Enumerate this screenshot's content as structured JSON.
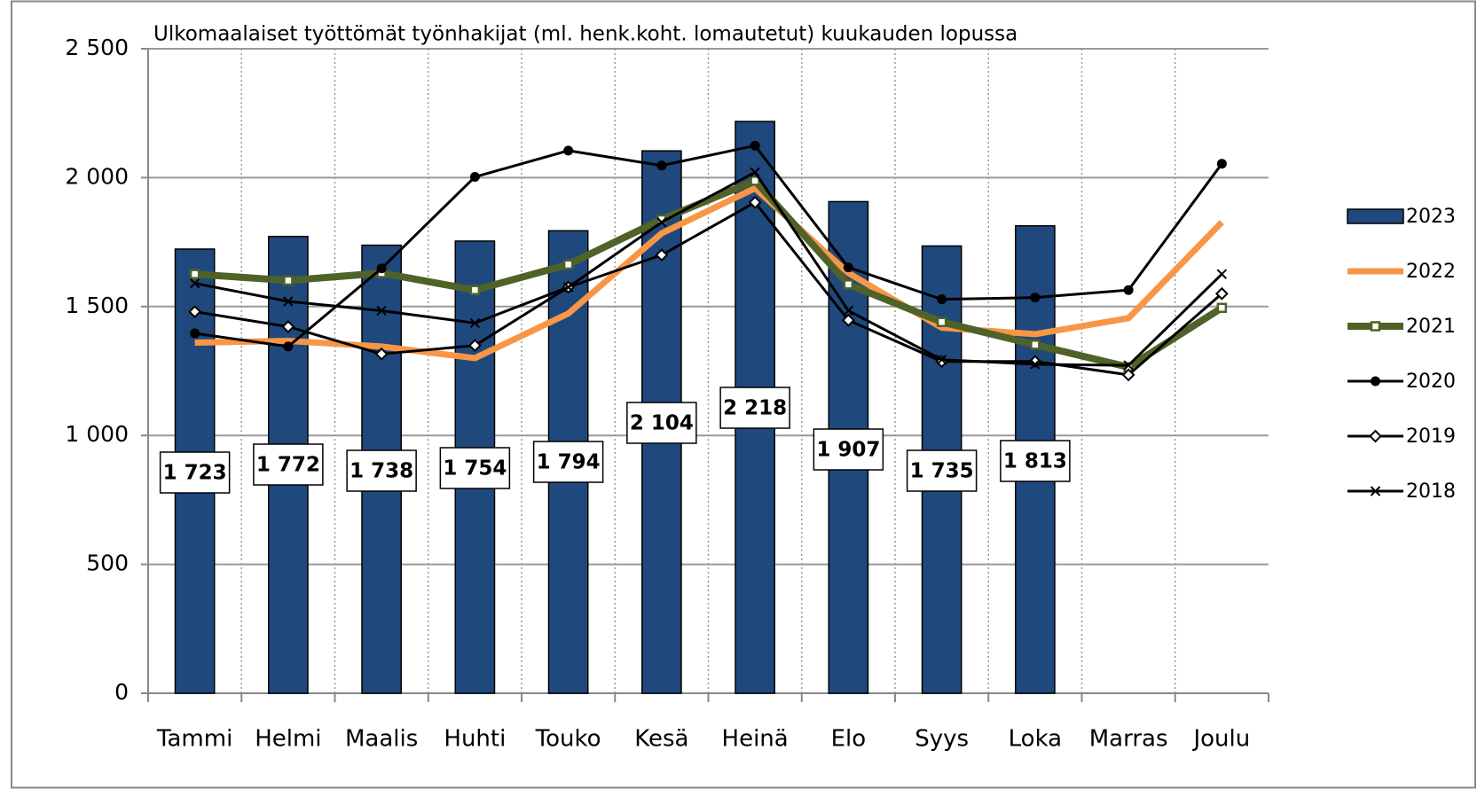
{
  "chart_data": {
    "type": "bar",
    "title": "Ulkomaalaiset työttömät työnhakijat (ml. henk.koht. lomautetut) kuukauden lopussa",
    "categories": [
      "Tammi",
      "Helmi",
      "Maalis",
      "Huhti",
      "Touko",
      "Kesä",
      "Heinä",
      "Elo",
      "Syys",
      "Loka",
      "Marras",
      "Joulu"
    ],
    "series": [
      {
        "name": "2023",
        "type": "bar",
        "color": "#1f497d",
        "values": [
          1723,
          1772,
          1738,
          1754,
          1794,
          2104,
          2218,
          1907,
          1735,
          1813,
          null,
          null
        ],
        "value_labels": [
          "1 723",
          "1 772",
          "1 738",
          "1 754",
          "1 794",
          "2 104",
          "2 218",
          "1 907",
          "1 735",
          "1 813",
          null,
          null
        ]
      },
      {
        "name": "2022",
        "type": "line",
        "color": "#f79646",
        "marker": "none",
        "values": [
          1360,
          1367,
          1345,
          1300,
          1473,
          1784,
          1959,
          1630,
          1418,
          1393,
          1455,
          1827
        ]
      },
      {
        "name": "2021",
        "type": "line",
        "color": "#4f6228",
        "marker": "square",
        "values": [
          1626,
          1601,
          1630,
          1564,
          1663,
          1838,
          1988,
          1586,
          1440,
          1352,
          1265,
          1495
        ]
      },
      {
        "name": "2020",
        "type": "line",
        "color": "#000000",
        "marker": "circle",
        "values": [
          1396,
          1345,
          1648,
          2003,
          2105,
          2047,
          2124,
          1652,
          1528,
          1535,
          1564,
          2054
        ]
      },
      {
        "name": "2019",
        "type": "line",
        "color": "#000000",
        "marker": "diamond",
        "values": [
          1480,
          1422,
          1316,
          1349,
          1575,
          1700,
          1904,
          1447,
          1287,
          1287,
          1235,
          1550
        ]
      },
      {
        "name": "2018",
        "type": "line",
        "color": "#000000",
        "marker": "x",
        "values": [
          1590,
          1520,
          1484,
          1436,
          1575,
          1827,
          2021,
          1484,
          1294,
          1276,
          1272,
          1626
        ]
      }
    ],
    "ylim": [
      0,
      2500
    ],
    "yticks": [
      0,
      500,
      {
        "value": 1000,
        "label": "1 000"
      },
      {
        "value": 1500,
        "label": "1 500"
      },
      {
        "value": 2000,
        "label": "2 000"
      },
      {
        "value": 2500,
        "label": "2 500"
      }
    ],
    "grid": true,
    "legend": "right"
  }
}
